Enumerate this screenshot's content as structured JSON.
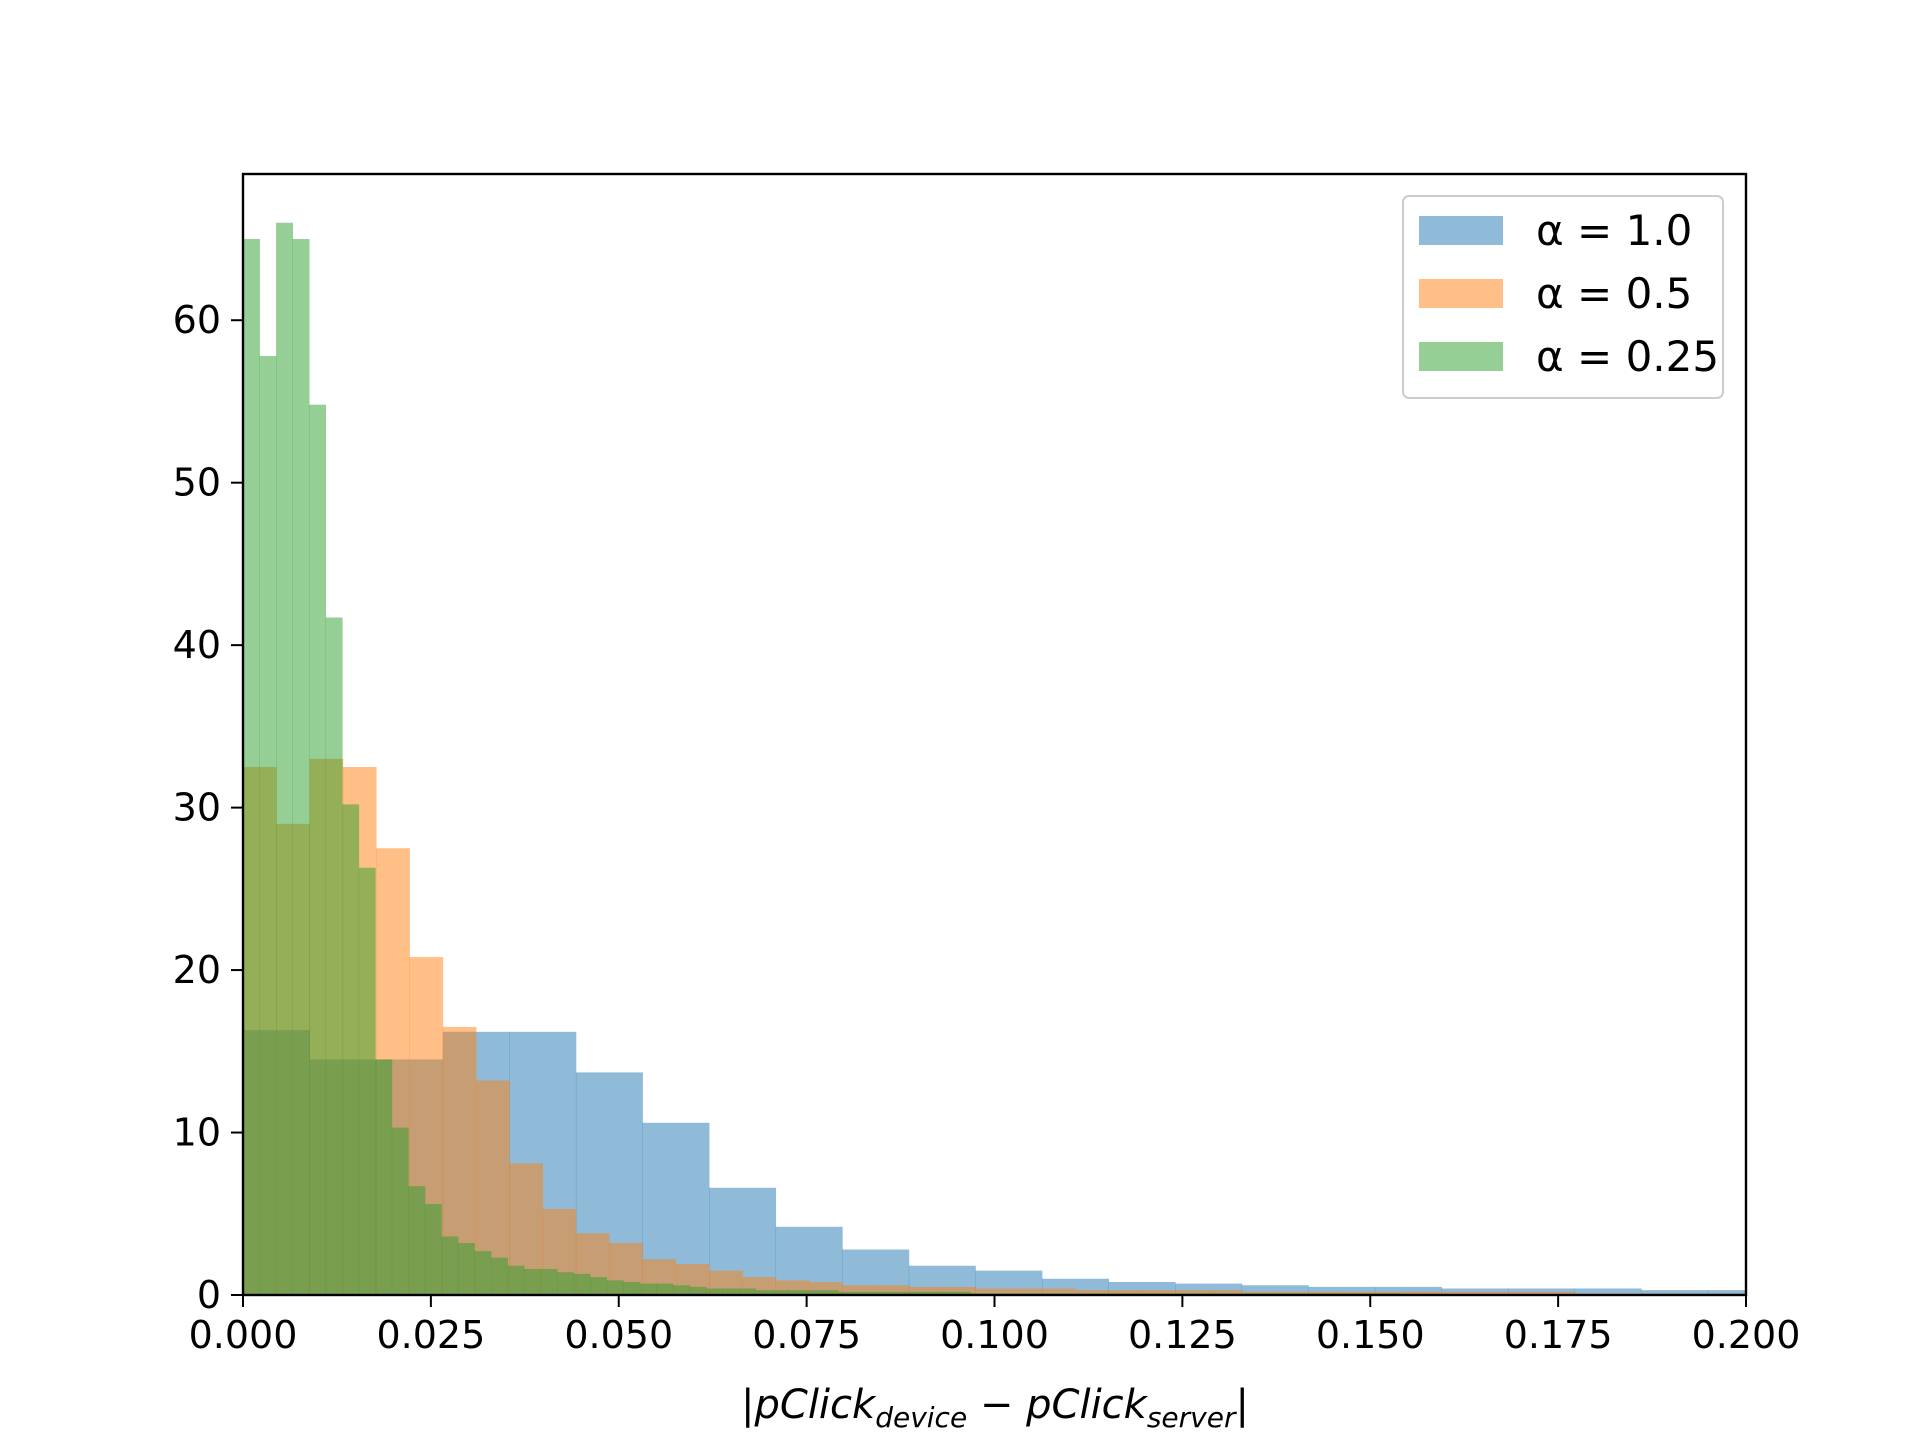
{
  "chart_data": {
    "type": "histogram",
    "title": "",
    "xlim": [
      0.0,
      0.2
    ],
    "ylim": [
      0,
      69
    ],
    "x_ticks": [
      {
        "value": 0.0,
        "label": "0.000"
      },
      {
        "value": 0.025,
        "label": "0.025"
      },
      {
        "value": 0.05,
        "label": "0.050"
      },
      {
        "value": 0.075,
        "label": "0.075"
      },
      {
        "value": 0.1,
        "label": "0.100"
      },
      {
        "value": 0.125,
        "label": "0.125"
      },
      {
        "value": 0.15,
        "label": "0.150"
      },
      {
        "value": 0.175,
        "label": "0.175"
      },
      {
        "value": 0.2,
        "label": "0.200"
      }
    ],
    "y_ticks": [
      {
        "value": 0,
        "label": "0"
      },
      {
        "value": 10,
        "label": "10"
      },
      {
        "value": 20,
        "label": "20"
      },
      {
        "value": 30,
        "label": "30"
      },
      {
        "value": 40,
        "label": "40"
      },
      {
        "value": 50,
        "label": "50"
      },
      {
        "value": 60,
        "label": "60"
      }
    ],
    "xlabel": {
      "pre": "|pClick",
      "sub1": "device",
      "mid": " − pClick",
      "sub2": "server",
      "post": "|"
    },
    "ylabel": "",
    "grid": false,
    "legend_position": "top-right",
    "series": [
      {
        "name": "α = 1.0",
        "color": "#1f77b4",
        "bin_width": 0.00886,
        "counts": [
          16.3,
          14.5,
          14.5,
          16.2,
          16.2,
          13.7,
          10.6,
          6.6,
          4.2,
          2.8,
          1.8,
          1.5,
          1.0,
          0.8,
          0.7,
          0.6,
          0.5,
          0.5,
          0.4,
          0.4,
          0.4,
          0.3,
          0.3,
          0.3,
          0.2,
          0.2
        ]
      },
      {
        "name": "α = 0.5",
        "color": "#ff7f0e",
        "bin_width": 0.00443,
        "counts": [
          32.5,
          29.0,
          33.0,
          32.5,
          27.5,
          20.8,
          16.5,
          13.2,
          8.1,
          5.3,
          3.8,
          3.2,
          2.2,
          1.9,
          1.5,
          1.1,
          0.9,
          0.8,
          0.6,
          0.6,
          0.5,
          0.5,
          0.4,
          0.4,
          0.4,
          0.3,
          0.3,
          0.3,
          0.3,
          0.3,
          0.2,
          0.2,
          0.2,
          0.2,
          0.2,
          0.2,
          0.2,
          0.2,
          0.2,
          0.2,
          0.1,
          0.1,
          0.1,
          0.1,
          0.1
        ]
      },
      {
        "name": "α = 0.25",
        "color": "#2ca02c",
        "bin_width": 0.0022,
        "counts": [
          65.0,
          57.8,
          66.0,
          65.0,
          54.8,
          41.7,
          30.2,
          26.3,
          14.5,
          10.3,
          6.7,
          5.6,
          3.6,
          3.2,
          2.7,
          2.3,
          1.8,
          1.6,
          1.6,
          1.4,
          1.3,
          1.1,
          0.9,
          0.8,
          0.7,
          0.7,
          0.6,
          0.5,
          0.4,
          0.4,
          0.4,
          0.3,
          0.3,
          0.3,
          0.3,
          0.3,
          0.2,
          0.2,
          0.2,
          0.2,
          0.2,
          0.2,
          0.2,
          0.2,
          0.1,
          0.1,
          0.1,
          0.1,
          0.1,
          0.1,
          0.1,
          0.1,
          0.1,
          0.1,
          0.1,
          0.1,
          0.1,
          0.1,
          0.1,
          0.1,
          0.1,
          0.1,
          0.1,
          0.1,
          0.1,
          0.1,
          0.1,
          0.1,
          0.1,
          0.1
        ]
      }
    ]
  }
}
